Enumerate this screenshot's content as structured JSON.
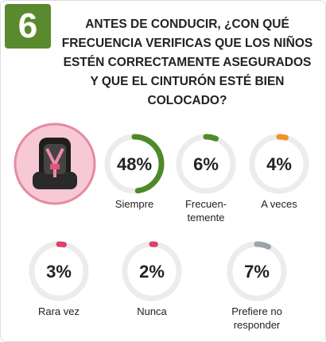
{
  "badge": "6",
  "chart_data": {
    "type": "donut",
    "title": "ANTES DE CONDUCIR, ¿CON QUÉ FRECUENCIA VERIFICAS QUE LOS NIÑOS ESTÉN CORRECTAMENTE ASEGURADOS Y QUE EL CINTURÓN ESTÉ BIEN COLOCADO?",
    "categories": [
      "Siempre",
      "Frecuen-\ntemente",
      "A veces",
      "Rara vez",
      "Nunca",
      "Prefiere no\nresponder"
    ],
    "values": [
      48,
      6,
      4,
      3,
      2,
      7
    ],
    "value_labels": [
      "48%",
      "6%",
      "4%",
      "3%",
      "2%",
      "7%"
    ],
    "colors": [
      "#4f8a2a",
      "#4f8a2a",
      "#f0922b",
      "#d9446b",
      "#d9446b",
      "#9aa5a8"
    ]
  }
}
